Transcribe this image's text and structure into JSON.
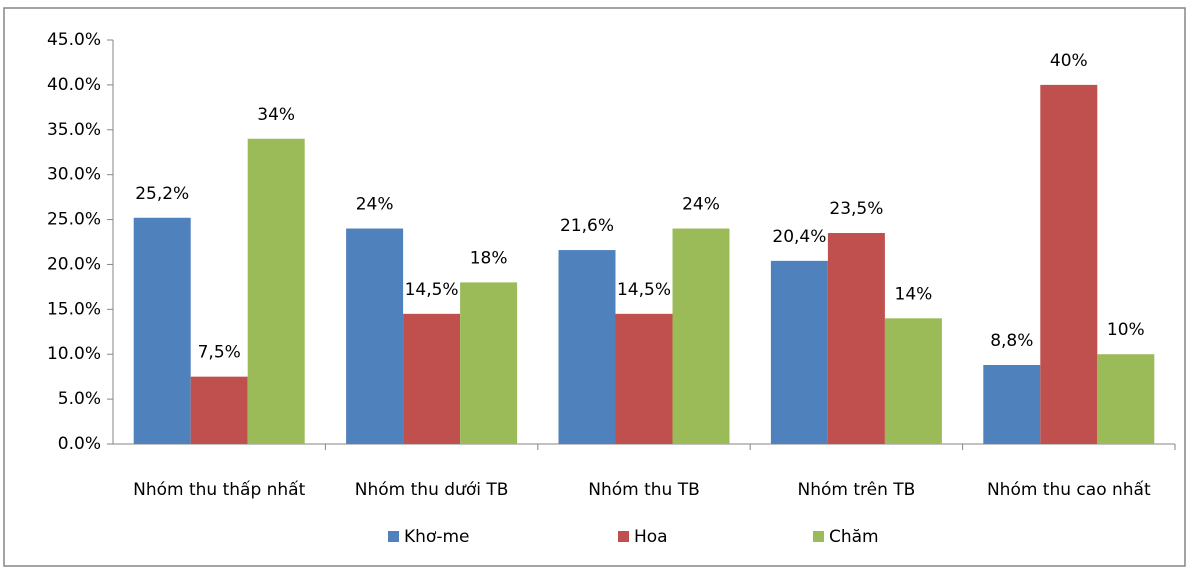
{
  "chart_data": {
    "type": "bar",
    "categories": [
      "Nhóm thu thấp nhất",
      "Nhóm thu dưới TB",
      "Nhóm thu TB",
      "Nhóm trên TB",
      "Nhóm thu cao nhất"
    ],
    "series": [
      {
        "name": "Khơ-me",
        "color": "#4f81bd",
        "values": [
          25.2,
          24,
          21.6,
          20.4,
          8.8
        ],
        "value_labels": [
          "25,2%",
          "24%",
          "21,6%",
          "20,4%",
          "8,8%"
        ]
      },
      {
        "name": "Hoa",
        "color": "#c0504d",
        "values": [
          7.5,
          14.5,
          14.5,
          23.5,
          40
        ],
        "value_labels": [
          "7,5%",
          "14,5%",
          "14,5%",
          "23,5%",
          "40%"
        ]
      },
      {
        "name": "Chăm",
        "color": "#9bbb59",
        "values": [
          34,
          18,
          24,
          14,
          10
        ],
        "value_labels": [
          "34%",
          "18%",
          "24%",
          "14%",
          "10%"
        ]
      }
    ],
    "ylim": [
      0,
      45
    ],
    "yticks": [
      {
        "value": 0,
        "label": "0.0%"
      },
      {
        "value": 5,
        "label": "5.0%"
      },
      {
        "value": 10,
        "label": "10.0%"
      },
      {
        "value": 15,
        "label": "15.0%"
      },
      {
        "value": 20,
        "label": "20.0%"
      },
      {
        "value": 25,
        "label": "25.0%"
      },
      {
        "value": 30,
        "label": "30.0%"
      },
      {
        "value": 35,
        "label": "35.0%"
      },
      {
        "value": 40,
        "label": "40.0%"
      },
      {
        "value": 45,
        "label": "45.0%"
      }
    ],
    "grid": false,
    "legend": "bottom"
  }
}
